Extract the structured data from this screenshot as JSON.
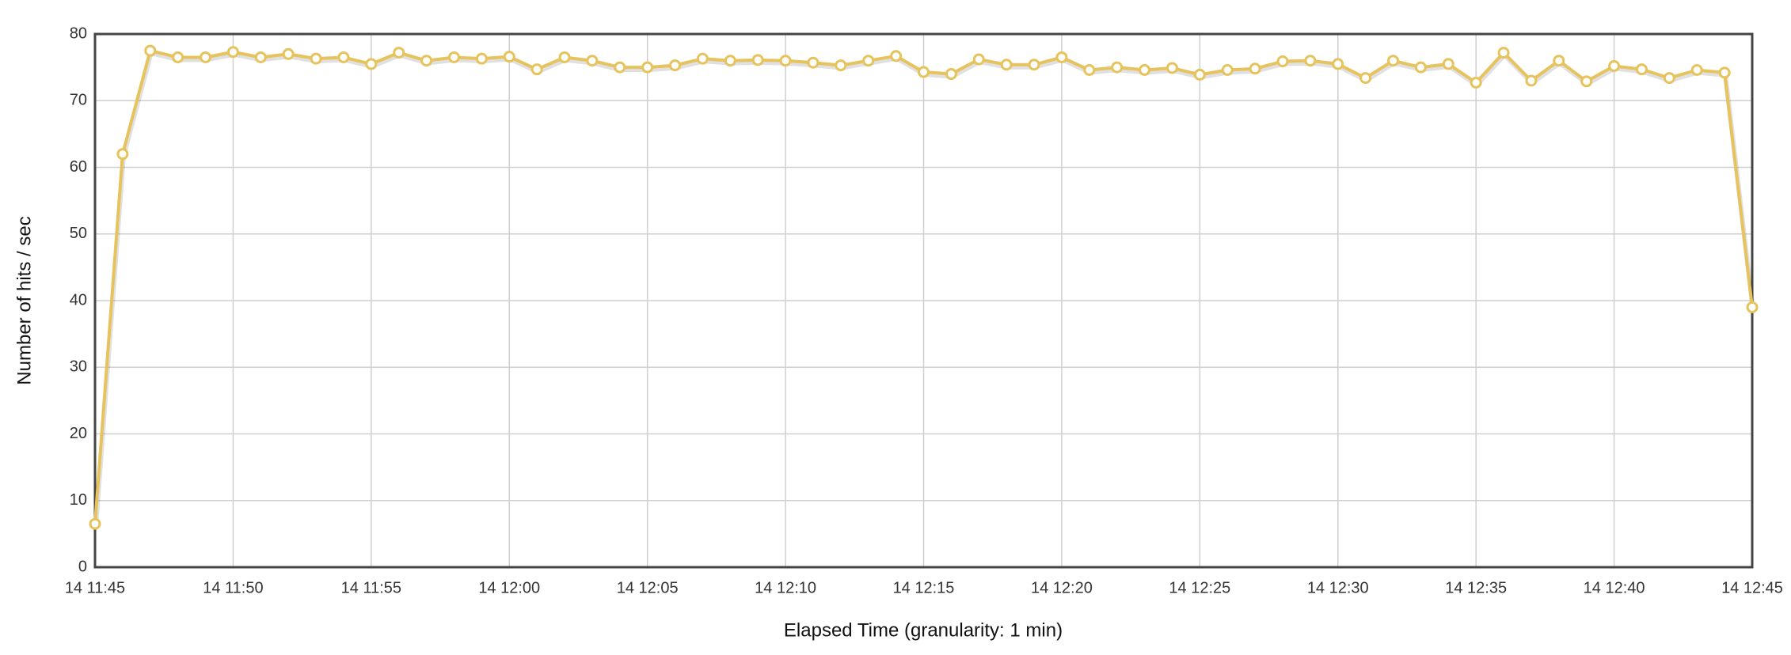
{
  "chart_data": {
    "type": "line",
    "x_label": "Elapsed Time (granularity: 1 min)",
    "y_label": "Number of hits / sec",
    "x": [
      "14 11:45",
      "14 11:46",
      "14 11:47",
      "14 11:48",
      "14 11:49",
      "14 11:50",
      "14 11:51",
      "14 11:52",
      "14 11:53",
      "14 11:54",
      "14 11:55",
      "14 11:56",
      "14 11:57",
      "14 11:58",
      "14 11:59",
      "14 12:00",
      "14 12:01",
      "14 12:02",
      "14 12:03",
      "14 12:04",
      "14 12:05",
      "14 12:06",
      "14 12:07",
      "14 12:08",
      "14 12:09",
      "14 12:10",
      "14 12:11",
      "14 12:12",
      "14 12:13",
      "14 12:14",
      "14 12:15",
      "14 12:16",
      "14 12:17",
      "14 12:18",
      "14 12:19",
      "14 12:20",
      "14 12:21",
      "14 12:22",
      "14 12:23",
      "14 12:24",
      "14 12:25",
      "14 12:26",
      "14 12:27",
      "14 12:28",
      "14 12:29",
      "14 12:30",
      "14 12:31",
      "14 12:32",
      "14 12:33",
      "14 12:34",
      "14 12:35",
      "14 12:36",
      "14 12:37",
      "14 12:38",
      "14 12:39",
      "14 12:40",
      "14 12:41",
      "14 12:42",
      "14 12:43",
      "14 12:44",
      "14 12:45"
    ],
    "series": [
      {
        "name": "Hits",
        "color": "#e6c35c",
        "values": [
          6.5,
          62,
          77.5,
          76.5,
          76.5,
          77.3,
          76.5,
          77,
          76.3,
          76.5,
          75.5,
          77.2,
          76,
          76.5,
          76.3,
          76.6,
          74.7,
          76.5,
          76,
          75,
          75,
          75.3,
          76.3,
          76,
          76.1,
          76,
          75.7,
          75.3,
          76,
          76.7,
          74.3,
          74,
          76.2,
          75.4,
          75.4,
          76.5,
          74.6,
          75,
          74.6,
          74.9,
          73.9,
          74.6,
          74.8,
          75.9,
          76,
          75.5,
          73.4,
          76,
          75,
          75.5,
          72.7,
          77.2,
          73,
          76,
          72.9,
          75.2,
          74.7,
          73.4,
          74.6,
          74.2,
          39
        ]
      }
    ],
    "xticks": [
      "14 11:45",
      "14 11:50",
      "14 11:55",
      "14 12:00",
      "14 12:05",
      "14 12:10",
      "14 12:15",
      "14 12:20",
      "14 12:25",
      "14 12:30",
      "14 12:35",
      "14 12:40",
      "14 12:45"
    ],
    "ylim": [
      0,
      80
    ],
    "yticks": [
      0,
      10,
      20,
      30,
      40,
      50,
      60,
      70,
      80
    ],
    "grid": true
  }
}
